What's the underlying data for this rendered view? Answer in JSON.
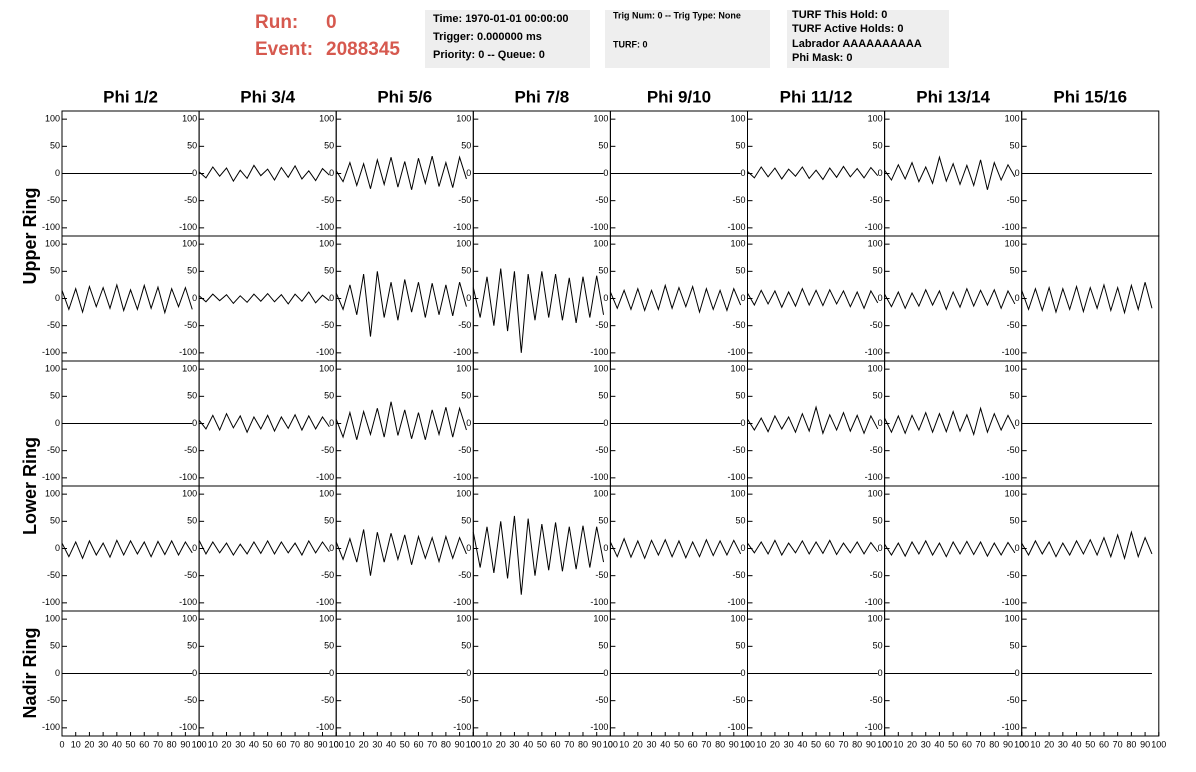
{
  "header": {
    "run_label": "Run:",
    "run": 0,
    "event_label": "Event:",
    "event": 2088345
  },
  "info": [
    [
      "Time: 1970-01-01 00:00:00",
      "Trigger: 0.000000 ms",
      "Priority: 0 -- Queue: 0"
    ],
    [
      "Trig Num: 0 -- Trig Type: None",
      "TURF: 0"
    ],
    [
      "TURF This Hold: 0",
      "TURF Active Holds: 0",
      "Labrador AAAAAAAAAA",
      "Phi Mask: 0"
    ]
  ],
  "columns": [
    "Phi 1/2",
    "Phi 3/4",
    "Phi 5/6",
    "Phi 7/8",
    "Phi 9/10",
    "Phi 11/12",
    "Phi 13/14",
    "Phi 15/16"
  ],
  "ring_labels": [
    "Upper Ring",
    "Lower Ring",
    "Nadir Ring"
  ],
  "axes": {
    "xlim": [
      0,
      100
    ],
    "xticks": [
      0,
      10,
      20,
      30,
      40,
      50,
      60,
      70,
      80,
      90,
      100
    ],
    "ylim": [
      -115,
      115
    ],
    "yticks": [
      100,
      50,
      0,
      -50,
      -100
    ]
  },
  "x": [
    0,
    5,
    10,
    15,
    20,
    25,
    30,
    35,
    40,
    45,
    50,
    55,
    60,
    65,
    70,
    75,
    80,
    85,
    90,
    95
  ],
  "panels": [
    [
      [
        0,
        0,
        0,
        0,
        0,
        0,
        0,
        0,
        0,
        0,
        0,
        0,
        0,
        0,
        0,
        0,
        0,
        0,
        0,
        0
      ],
      [
        3,
        -8,
        12,
        -5,
        10,
        -14,
        6,
        -9,
        15,
        -4,
        8,
        -12,
        11,
        -7,
        14,
        -10,
        5,
        -13,
        9,
        -3
      ],
      [
        5,
        -15,
        20,
        -22,
        18,
        -28,
        25,
        -20,
        30,
        -25,
        22,
        -30,
        28,
        -18,
        32,
        -24,
        20,
        -26,
        30,
        -10
      ],
      [
        0,
        0,
        0,
        0,
        0,
        0,
        0,
        0,
        0,
        0,
        0,
        0,
        0,
        0,
        0,
        0,
        0,
        0,
        0,
        0
      ],
      [
        0,
        0,
        0,
        0,
        0,
        0,
        0,
        0,
        0,
        0,
        0,
        0,
        0,
        0,
        0,
        0,
        0,
        0,
        0,
        0
      ],
      [
        4,
        -8,
        12,
        -6,
        10,
        -10,
        8,
        -5,
        12,
        -9,
        6,
        -11,
        10,
        -7,
        13,
        -6,
        9,
        -8,
        11,
        -4
      ],
      [
        6,
        -12,
        16,
        -10,
        20,
        -15,
        12,
        -18,
        30,
        -14,
        18,
        -20,
        15,
        -22,
        25,
        -30,
        20,
        -12,
        16,
        -6
      ],
      [
        0,
        0,
        0,
        0,
        0,
        0,
        0,
        0,
        0,
        0,
        0,
        0,
        0,
        0,
        0,
        0,
        0,
        0,
        0,
        0
      ]
    ],
    [
      [
        15,
        -20,
        18,
        -25,
        22,
        -15,
        20,
        -18,
        25,
        -22,
        16,
        -20,
        24,
        -18,
        21,
        -26,
        18,
        -15,
        20,
        -20
      ],
      [
        5,
        -6,
        8,
        -4,
        7,
        -9,
        5,
        -7,
        8,
        -5,
        9,
        -6,
        7,
        -10,
        8,
        -5,
        12,
        -8,
        6,
        -4
      ],
      [
        10,
        -20,
        25,
        -30,
        45,
        -70,
        50,
        -35,
        30,
        -40,
        35,
        -25,
        30,
        -35,
        28,
        -30,
        25,
        -32,
        30,
        -15
      ],
      [
        20,
        -35,
        40,
        -50,
        55,
        -60,
        50,
        -100,
        45,
        -40,
        50,
        -35,
        45,
        -40,
        38,
        -45,
        40,
        -35,
        42,
        -30
      ],
      [
        12,
        -18,
        15,
        -20,
        18,
        -22,
        15,
        -20,
        24,
        -18,
        20,
        -15,
        22,
        -25,
        18,
        -20,
        15,
        -22,
        18,
        -12
      ],
      [
        10,
        -12,
        15,
        -10,
        14,
        -16,
        12,
        -14,
        18,
        -12,
        15,
        -13,
        16,
        -10,
        14,
        -15,
        12,
        -18,
        14,
        -8
      ],
      [
        8,
        -15,
        12,
        -18,
        10,
        -14,
        16,
        -12,
        14,
        -20,
        12,
        -16,
        18,
        -14,
        15,
        -12,
        16,
        -18,
        14,
        -10
      ],
      [
        15,
        -20,
        18,
        -22,
        20,
        -25,
        18,
        -20,
        22,
        -24,
        20,
        -18,
        25,
        -22,
        20,
        -26,
        24,
        -20,
        30,
        -18
      ]
    ],
    [
      [
        0,
        0,
        0,
        0,
        0,
        0,
        0,
        0,
        0,
        0,
        0,
        0,
        0,
        0,
        0,
        0,
        0,
        0,
        0,
        0
      ],
      [
        6,
        -10,
        15,
        -12,
        18,
        -8,
        14,
        -16,
        12,
        -10,
        15,
        -14,
        12,
        -9,
        16,
        -12,
        14,
        -10,
        12,
        -6
      ],
      [
        8,
        -25,
        20,
        -30,
        22,
        -20,
        28,
        -25,
        40,
        -22,
        25,
        -28,
        20,
        -30,
        25,
        -20,
        30,
        -25,
        28,
        -12
      ],
      [
        0,
        0,
        0,
        0,
        0,
        0,
        0,
        0,
        0,
        0,
        0,
        0,
        0,
        0,
        0,
        0,
        0,
        0,
        0,
        0
      ],
      [
        0,
        0,
        0,
        0,
        0,
        0,
        0,
        0,
        0,
        0,
        0,
        0,
        0,
        0,
        0,
        0,
        0,
        0,
        0,
        0
      ],
      [
        8,
        -12,
        10,
        -15,
        14,
        -10,
        12,
        -16,
        18,
        -14,
        30,
        -18,
        16,
        -12,
        20,
        -14,
        15,
        -18,
        14,
        -10
      ],
      [
        10,
        -16,
        14,
        -18,
        15,
        -12,
        20,
        -16,
        18,
        -15,
        22,
        -14,
        16,
        -20,
        28,
        -16,
        18,
        -12,
        15,
        -10
      ],
      [
        0,
        0,
        0,
        0,
        0,
        0,
        0,
        0,
        0,
        0,
        0,
        0,
        0,
        0,
        0,
        0,
        0,
        0,
        0,
        0
      ]
    ],
    [
      [
        10,
        -15,
        12,
        -18,
        14,
        -12,
        10,
        -16,
        15,
        -12,
        14,
        -10,
        12,
        -15,
        13,
        -11,
        14,
        -12,
        12,
        -8
      ],
      [
        15,
        -10,
        12,
        -8,
        10,
        -12,
        8,
        -10,
        12,
        -9,
        14,
        -10,
        12,
        -8,
        10,
        -12,
        14,
        -8,
        12,
        -6
      ],
      [
        12,
        -20,
        18,
        -25,
        35,
        -50,
        30,
        -25,
        28,
        -20,
        25,
        -30,
        22,
        -18,
        20,
        -24,
        22,
        -18,
        20,
        -10
      ],
      [
        30,
        -35,
        40,
        -45,
        50,
        -55,
        60,
        -85,
        55,
        -50,
        45,
        -40,
        48,
        -42,
        40,
        -38,
        42,
        -35,
        40,
        -25
      ],
      [
        12,
        -15,
        18,
        -16,
        14,
        -18,
        15,
        -12,
        16,
        -15,
        14,
        -17,
        12,
        -15,
        16,
        -13,
        14,
        -12,
        15,
        -10
      ],
      [
        10,
        -8,
        12,
        -10,
        15,
        -12,
        10,
        -8,
        14,
        -10,
        12,
        -9,
        15,
        -11,
        10,
        -8,
        12,
        -10,
        11,
        -6
      ],
      [
        8,
        -12,
        10,
        -14,
        12,
        -10,
        14,
        -12,
        10,
        -15,
        12,
        -10,
        13,
        -11,
        12,
        -14,
        10,
        -12,
        11,
        -8
      ],
      [
        10,
        -12,
        14,
        -10,
        12,
        -15,
        10,
        -12,
        14,
        -10,
        16,
        -12,
        20,
        -15,
        25,
        -18,
        30,
        -15,
        20,
        -10
      ]
    ],
    [
      [
        0,
        0,
        0,
        0,
        0,
        0,
        0,
        0,
        0,
        0,
        0,
        0,
        0,
        0,
        0,
        0,
        0,
        0,
        0,
        0
      ],
      [
        0,
        0,
        0,
        0,
        0,
        0,
        0,
        0,
        0,
        0,
        0,
        0,
        0,
        0,
        0,
        0,
        0,
        0,
        0,
        0
      ],
      [
        0,
        0,
        0,
        0,
        0,
        0,
        0,
        0,
        0,
        0,
        0,
        0,
        0,
        0,
        0,
        0,
        0,
        0,
        0,
        0
      ],
      [
        0,
        0,
        0,
        0,
        0,
        0,
        0,
        0,
        0,
        0,
        0,
        0,
        0,
        0,
        0,
        0,
        0,
        0,
        0,
        0
      ],
      [
        0,
        0,
        0,
        0,
        0,
        0,
        0,
        0,
        0,
        0,
        0,
        0,
        0,
        0,
        0,
        0,
        0,
        0,
        0,
        0
      ],
      [
        0,
        0,
        0,
        0,
        0,
        0,
        0,
        0,
        0,
        0,
        0,
        0,
        0,
        0,
        0,
        0,
        0,
        0,
        0,
        0
      ],
      [
        0,
        0,
        0,
        0,
        0,
        0,
        0,
        0,
        0,
        0,
        0,
        0,
        0,
        0,
        0,
        0,
        0,
        0,
        0,
        0
      ],
      [
        0,
        0,
        0,
        0,
        0,
        0,
        0,
        0,
        0,
        0,
        0,
        0,
        0,
        0,
        0,
        0,
        0,
        0,
        0,
        0
      ]
    ]
  ]
}
